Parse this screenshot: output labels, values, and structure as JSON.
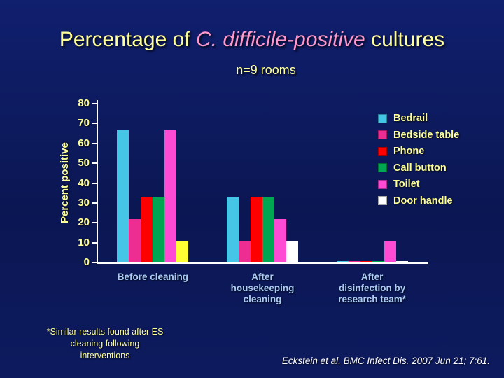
{
  "slide": {
    "title": {
      "prefix": "Percentage of ",
      "emphasis": "C. difficile-positive",
      "suffix": " cultures"
    },
    "subtitle": "n=9 rooms",
    "footnote_lines": [
      "*Similar results found after ES",
      "cleaning following",
      "interventions"
    ],
    "citation": "Eckstein et al, BMC Infect Dis. 2007 Jun 21; 7:61."
  },
  "palette": {
    "background_blue": "#0b1753",
    "title_yellow": "#FFFF99",
    "title_pink": "#FF99CC",
    "axis_text_yellow": "#FFFF99",
    "category_text_blue": "#A9CBF4",
    "axis_line_white": "#FFFFFF",
    "citation_white": "#FFFFFF"
  },
  "chart_data": {
    "type": "bar",
    "title": "Percentage of C. difficile-positive cultures",
    "subtitle": "n=9 rooms",
    "xlabel": "",
    "ylabel": "Percent positive",
    "ylim": [
      0,
      80
    ],
    "yticks": [
      0,
      10,
      20,
      30,
      40,
      50,
      60,
      70,
      80
    ],
    "grid": false,
    "legend_position": "top-right",
    "categories": [
      "Before cleaning",
      "After housekeeping cleaning",
      "After disinfection by research team*"
    ],
    "category_lines": [
      [
        "Before cleaning"
      ],
      [
        "After",
        "housekeeping",
        "cleaning"
      ],
      [
        "After",
        "disinfection by",
        "research team*"
      ]
    ],
    "series": [
      {
        "name": "Bedrail",
        "color": "#45C6E6",
        "values": [
          67,
          33,
          0
        ]
      },
      {
        "name": "Bedside table",
        "color": "#EE2D93",
        "values": [
          22,
          11,
          0
        ]
      },
      {
        "name": "Phone",
        "color": "#FF0000",
        "values": [
          33,
          33,
          0
        ]
      },
      {
        "name": "Call button",
        "color": "#00A651",
        "values": [
          33,
          33,
          0
        ]
      },
      {
        "name": "Toilet",
        "color": "#FF4AD4",
        "values": [
          67,
          22,
          11
        ]
      },
      {
        "name": "Door handle",
        "color": "#FFFFFF",
        "values": [
          11,
          11,
          0
        ],
        "color_overrides": {
          "0": "#FFFF33"
        }
      }
    ]
  }
}
